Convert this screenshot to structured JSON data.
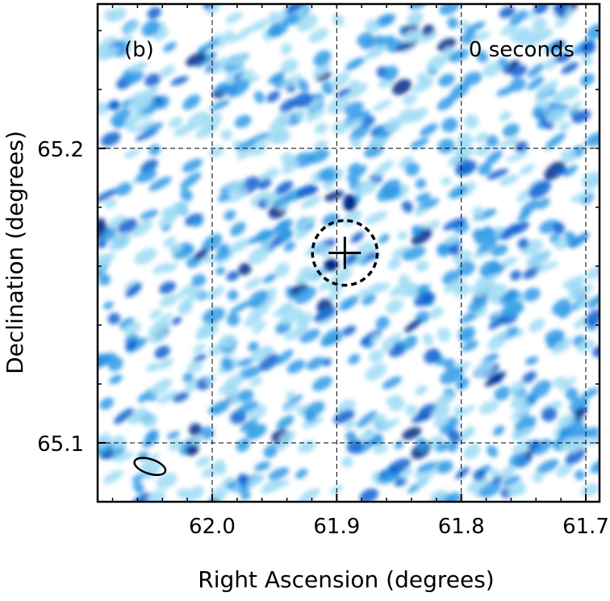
{
  "chart_data": {
    "type": "heatmap",
    "panel_label": "(b)",
    "time_label": "0 seconds",
    "xlabel": "Right Ascension (degrees)",
    "ylabel": "Declination (degrees)",
    "xlim": [
      62.092,
      61.689
    ],
    "ylim": [
      65.08,
      65.249
    ],
    "xticks": [
      {
        "value": 62.0,
        "label": "62.0"
      },
      {
        "value": 61.9,
        "label": "61.9"
      },
      {
        "value": 61.8,
        "label": "61.8"
      },
      {
        "value": 61.7,
        "label": "61.7"
      }
    ],
    "yticks": [
      {
        "value": 65.2,
        "label": "65.2"
      },
      {
        "value": 65.1,
        "label": "65.1"
      }
    ],
    "grid": true,
    "colormap": [
      "#ffffff",
      "#9fdcf5",
      "#2e9ae6",
      "#0a5fd0",
      "#062a8a"
    ],
    "source_marker": {
      "ra": 61.8935,
      "dec": 65.1645,
      "circle_radius_deg": 0.011
    },
    "beam": {
      "ra": 62.05,
      "dec": 65.092
    }
  }
}
